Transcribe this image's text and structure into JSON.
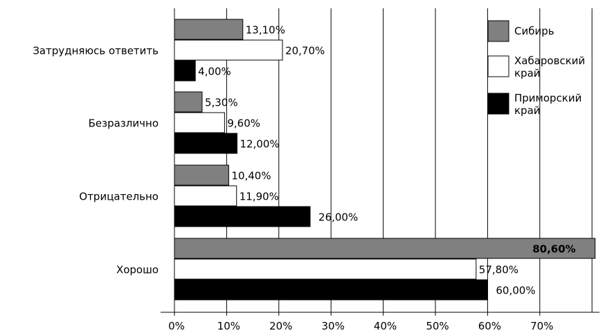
{
  "chart_data": {
    "type": "bar",
    "orientation": "horizontal",
    "categories": [
      "Затрудняюсь ответить",
      "Безразлично",
      "Отрицательно",
      "Хорошо"
    ],
    "series": [
      {
        "name": "Сибирь",
        "color": "#808080",
        "values": [
          13.1,
          5.3,
          10.4,
          80.6
        ],
        "labels": [
          "13,10%",
          "5,30%",
          "10,40%",
          "80,60%"
        ]
      },
      {
        "name": "Хабаровский край",
        "color": "#ffffff",
        "values": [
          20.7,
          9.6,
          11.9,
          57.8
        ],
        "labels": [
          "20,70%",
          "9,60%",
          "11,90%",
          "57,80%"
        ]
      },
      {
        "name": "Приморский край",
        "color": "#000000",
        "values": [
          4.0,
          12.0,
          26.0,
          60.0
        ],
        "labels": [
          "4,00%",
          "12,00%",
          "26,00%",
          "60,00%"
        ]
      }
    ],
    "bold_label": "80,60%",
    "xlim": [
      0,
      80
    ],
    "xticks": [
      0,
      10,
      20,
      30,
      40,
      50,
      60,
      70
    ],
    "xtick_labels": [
      "0%",
      "10%",
      "20%",
      "30%",
      "40%",
      "50%",
      "60%",
      "70%"
    ],
    "grid": true,
    "legend_position": "top-right",
    "title": "",
    "xlabel": "",
    "ylabel": ""
  }
}
